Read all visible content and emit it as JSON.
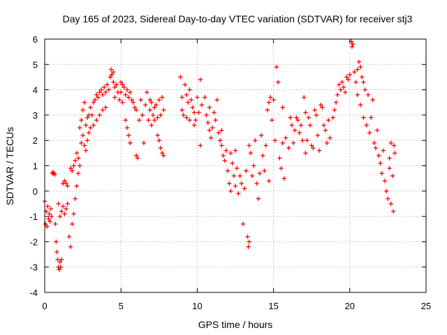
{
  "chart_data": {
    "type": "scatter",
    "title": "Day 165 of 2023, Sidereal Day-to-day VTEC variation (SDTVAR) for receiver stj3",
    "xlabel": "GPS time / hours",
    "ylabel": "SDTVAR / TECUs",
    "xlim": [
      0,
      25
    ],
    "ylim": [
      -4,
      6
    ],
    "xticks": [
      "0",
      "5",
      "10",
      "15",
      "20",
      "25"
    ],
    "yticks": [
      "-4",
      "-3",
      "-2",
      "-1",
      "0",
      "1",
      "2",
      "3",
      "4",
      "5",
      "6"
    ],
    "grid": true,
    "marker": "+",
    "color": "#ff0000",
    "series": [
      {
        "name": "SDTVAR",
        "points": [
          [
            0.0,
            -0.4
          ],
          [
            0.05,
            -1.3
          ],
          [
            0.1,
            -0.8
          ],
          [
            0.15,
            -1.4
          ],
          [
            0.2,
            -0.6
          ],
          [
            0.25,
            -1.1
          ],
          [
            0.3,
            -0.9
          ],
          [
            0.35,
            -1.2
          ],
          [
            0.4,
            -0.7
          ],
          [
            0.45,
            -1.0
          ],
          [
            0.5,
            0.7
          ],
          [
            0.55,
            0.75
          ],
          [
            0.6,
            0.7
          ],
          [
            0.65,
            0.65
          ],
          [
            0.7,
            -1.3
          ],
          [
            0.75,
            -2.0
          ],
          [
            0.8,
            -2.4
          ],
          [
            0.85,
            -2.7
          ],
          [
            0.9,
            -3.0
          ],
          [
            0.95,
            -3.1
          ],
          [
            1.0,
            -2.8
          ],
          [
            1.05,
            -3.0
          ],
          [
            1.1,
            -2.7
          ],
          [
            1.0,
            -1.0
          ],
          [
            1.1,
            -0.8
          ],
          [
            0.9,
            -0.5
          ],
          [
            1.2,
            -0.6
          ],
          [
            1.2,
            0.3
          ],
          [
            1.3,
            0.4
          ],
          [
            1.4,
            0.3
          ],
          [
            1.5,
            0.2
          ],
          [
            1.3,
            -0.9
          ],
          [
            1.4,
            -0.7
          ],
          [
            1.5,
            -0.5
          ],
          [
            1.6,
            -1.8
          ],
          [
            1.7,
            -2.2
          ],
          [
            1.7,
            0.9
          ],
          [
            1.8,
            0.8
          ],
          [
            1.8,
            -1.3
          ],
          [
            1.9,
            -0.9
          ],
          [
            1.9,
            1.0
          ],
          [
            2.0,
            1.2
          ],
          [
            2.0,
            -0.3
          ],
          [
            2.1,
            0.2
          ],
          [
            2.1,
            1.5
          ],
          [
            2.2,
            1.3
          ],
          [
            2.2,
            0.7
          ],
          [
            2.3,
            2.5
          ],
          [
            2.3,
            1.0
          ],
          [
            2.4,
            2.8
          ],
          [
            2.4,
            1.9
          ],
          [
            2.5,
            3.2
          ],
          [
            2.5,
            2.2
          ],
          [
            2.6,
            3.5
          ],
          [
            2.6,
            1.8
          ],
          [
            2.7,
            2.6
          ],
          [
            2.7,
            1.6
          ],
          [
            2.8,
            2.0
          ],
          [
            2.8,
            2.9
          ],
          [
            2.9,
            3.0
          ],
          [
            2.9,
            2.3
          ],
          [
            3.0,
            3.3
          ],
          [
            3.0,
            2.5
          ],
          [
            3.1,
            3.0
          ],
          [
            3.2,
            3.5
          ],
          [
            3.2,
            2.6
          ],
          [
            3.3,
            3.6
          ],
          [
            3.4,
            3.8
          ],
          [
            3.4,
            2.8
          ],
          [
            3.5,
            3.7
          ],
          [
            3.6,
            3.9
          ],
          [
            3.6,
            3.0
          ],
          [
            3.7,
            4.0
          ],
          [
            3.8,
            3.8
          ],
          [
            3.8,
            3.2
          ],
          [
            3.9,
            4.1
          ],
          [
            4.0,
            3.9
          ],
          [
            4.0,
            3.3
          ],
          [
            4.1,
            4.2
          ],
          [
            4.2,
            4.0
          ],
          [
            4.3,
            4.5
          ],
          [
            4.35,
            4.8
          ],
          [
            4.4,
            4.6
          ],
          [
            4.5,
            4.7
          ],
          [
            4.5,
            4.3
          ],
          [
            4.6,
            4.1
          ],
          [
            4.6,
            3.7
          ],
          [
            4.7,
            4.2
          ],
          [
            4.8,
            3.9
          ],
          [
            4.9,
            3.6
          ],
          [
            5.0,
            4.3
          ],
          [
            5.0,
            3.9
          ],
          [
            5.1,
            4.2
          ],
          [
            5.1,
            3.5
          ],
          [
            5.2,
            4.1
          ],
          [
            5.3,
            3.8
          ],
          [
            5.3,
            2.8
          ],
          [
            5.4,
            2.5
          ],
          [
            5.4,
            4.0
          ],
          [
            5.5,
            3.7
          ],
          [
            5.5,
            2.2
          ],
          [
            5.6,
            1.9
          ],
          [
            5.6,
            3.9
          ],
          [
            5.7,
            3.6
          ],
          [
            5.8,
            3.5
          ],
          [
            5.9,
            3.3
          ],
          [
            6.0,
            1.4
          ],
          [
            6.1,
            1.3
          ],
          [
            6.0,
            3.2
          ],
          [
            6.2,
            2.8
          ],
          [
            6.3,
            3.6
          ],
          [
            6.4,
            3.0
          ],
          [
            6.5,
            1.9
          ],
          [
            6.6,
            3.4
          ],
          [
            6.7,
            3.9
          ],
          [
            6.8,
            2.8
          ],
          [
            6.9,
            3.2
          ],
          [
            6.9,
            3.6
          ],
          [
            7.0,
            3.5
          ],
          [
            7.0,
            2.6
          ],
          [
            7.1,
            3.0
          ],
          [
            7.2,
            3.3
          ],
          [
            7.2,
            2.8
          ],
          [
            7.3,
            3.4
          ],
          [
            7.4,
            2.9
          ],
          [
            7.4,
            2.2
          ],
          [
            7.5,
            2.0
          ],
          [
            7.5,
            3.6
          ],
          [
            7.6,
            3.0
          ],
          [
            7.6,
            1.7
          ],
          [
            7.7,
            1.5
          ],
          [
            7.7,
            3.7
          ],
          [
            7.8,
            3.2
          ],
          [
            7.8,
            1.4
          ],
          [
            8.9,
            4.5
          ],
          [
            9.0,
            3.7
          ],
          [
            9.0,
            3.2
          ],
          [
            9.1,
            3.0
          ],
          [
            9.2,
            4.2
          ],
          [
            9.3,
            3.8
          ],
          [
            9.3,
            2.9
          ],
          [
            9.4,
            3.5
          ],
          [
            9.5,
            4.0
          ],
          [
            9.5,
            2.8
          ],
          [
            9.6,
            3.6
          ],
          [
            9.7,
            3.3
          ],
          [
            9.8,
            3.1
          ],
          [
            9.8,
            2.6
          ],
          [
            9.9,
            2.8
          ],
          [
            10.0,
            3.7
          ],
          [
            10.1,
            3.1
          ],
          [
            10.2,
            4.4
          ],
          [
            10.2,
            1.8
          ],
          [
            10.3,
            3.4
          ],
          [
            10.5,
            3.7
          ],
          [
            10.6,
            3.0
          ],
          [
            10.7,
            2.7
          ],
          [
            10.8,
            2.4
          ],
          [
            10.8,
            3.3
          ],
          [
            10.9,
            2.1
          ],
          [
            11.0,
            2.5
          ],
          [
            11.1,
            3.1
          ],
          [
            11.2,
            2.8
          ],
          [
            11.3,
            3.6
          ],
          [
            11.4,
            2.3
          ],
          [
            11.5,
            2.0
          ],
          [
            11.6,
            1.8
          ],
          [
            11.6,
            2.4
          ],
          [
            11.7,
            1.4
          ],
          [
            11.8,
            1.2
          ],
          [
            11.9,
            1.6
          ],
          [
            12.0,
            0.8
          ],
          [
            12.1,
            0.3
          ],
          [
            12.2,
            0.0
          ],
          [
            12.2,
            1.5
          ],
          [
            12.3,
            1.1
          ],
          [
            12.4,
            0.6
          ],
          [
            12.5,
            0.2
          ],
          [
            12.5,
            1.6
          ],
          [
            12.6,
            0.9
          ],
          [
            12.7,
            -0.1
          ],
          [
            12.8,
            0.6
          ],
          [
            12.9,
            0.3
          ],
          [
            13.0,
            -1.3
          ],
          [
            13.1,
            0.1
          ],
          [
            13.2,
            0.8
          ],
          [
            13.3,
            -1.8
          ],
          [
            13.35,
            -2.2
          ],
          [
            13.4,
            -2.0
          ],
          [
            13.4,
            1.8
          ],
          [
            13.5,
            1.5
          ],
          [
            13.6,
            0.6
          ],
          [
            13.7,
            1.0
          ],
          [
            13.8,
            2.0
          ],
          [
            13.9,
            0.3
          ],
          [
            14.0,
            -0.3
          ],
          [
            14.1,
            0.7
          ],
          [
            14.2,
            2.2
          ],
          [
            14.3,
            1.4
          ],
          [
            14.4,
            0.8
          ],
          [
            14.5,
            1.8
          ],
          [
            14.6,
            3.2
          ],
          [
            14.7,
            3.5
          ],
          [
            14.7,
            0.4
          ],
          [
            14.8,
            3.7
          ],
          [
            14.9,
            2.8
          ],
          [
            15.0,
            3.6
          ],
          [
            15.1,
            2.0
          ],
          [
            15.2,
            4.9
          ],
          [
            15.3,
            4.3
          ],
          [
            15.4,
            1.3
          ],
          [
            15.5,
            0.9
          ],
          [
            15.6,
            1.9
          ],
          [
            15.6,
            3.3
          ],
          [
            15.7,
            0.5
          ],
          [
            15.8,
            2.1
          ],
          [
            16.0,
            1.7
          ],
          [
            16.1,
            2.9
          ],
          [
            16.2,
            2.6
          ],
          [
            16.3,
            1.9
          ],
          [
            16.4,
            2.4
          ],
          [
            16.5,
            2.9
          ],
          [
            16.6,
            2.8
          ],
          [
            16.7,
            2.3
          ],
          [
            16.8,
            2.6
          ],
          [
            16.9,
            2.0
          ],
          [
            17.0,
            3.7
          ],
          [
            17.1,
            3.1
          ],
          [
            17.1,
            1.5
          ],
          [
            17.2,
            2.0
          ],
          [
            17.3,
            2.9
          ],
          [
            17.4,
            2.6
          ],
          [
            17.5,
            1.8
          ],
          [
            17.6,
            1.7
          ],
          [
            17.7,
            3.2
          ],
          [
            17.8,
            3.0
          ],
          [
            17.9,
            2.2
          ],
          [
            18.0,
            1.6
          ],
          [
            18.1,
            3.4
          ],
          [
            18.2,
            3.3
          ],
          [
            18.3,
            2.6
          ],
          [
            18.4,
            2.4
          ],
          [
            18.5,
            1.9
          ],
          [
            18.6,
            2.8
          ],
          [
            18.7,
            2.1
          ],
          [
            18.9,
            2.9
          ],
          [
            19.0,
            3.2
          ],
          [
            19.1,
            3.5
          ],
          [
            19.2,
            3.8
          ],
          [
            19.3,
            4.2
          ],
          [
            19.4,
            4.0
          ],
          [
            19.5,
            4.3
          ],
          [
            19.6,
            4.1
          ],
          [
            19.7,
            3.9
          ],
          [
            19.8,
            4.5
          ],
          [
            19.9,
            4.4
          ],
          [
            20.0,
            4.6
          ],
          [
            20.1,
            5.9
          ],
          [
            20.15,
            5.7
          ],
          [
            20.2,
            5.8
          ],
          [
            20.3,
            4.7
          ],
          [
            20.4,
            4.3
          ],
          [
            20.5,
            4.8
          ],
          [
            20.5,
            3.8
          ],
          [
            20.6,
            5.1
          ],
          [
            20.7,
            4.9
          ],
          [
            20.7,
            3.4
          ],
          [
            20.8,
            4.5
          ],
          [
            20.9,
            4.3
          ],
          [
            20.9,
            2.9
          ],
          [
            21.0,
            4.0
          ],
          [
            21.1,
            2.6
          ],
          [
            21.2,
            3.8
          ],
          [
            21.3,
            2.3
          ],
          [
            21.4,
            2.9
          ],
          [
            21.5,
            3.6
          ],
          [
            21.6,
            1.9
          ],
          [
            21.7,
            1.7
          ],
          [
            21.8,
            2.4
          ],
          [
            21.9,
            1.4
          ],
          [
            22.0,
            1.1
          ],
          [
            22.1,
            0.7
          ],
          [
            22.2,
            1.6
          ],
          [
            22.3,
            0.4
          ],
          [
            22.4,
            0.0
          ],
          [
            22.5,
            -0.3
          ],
          [
            22.6,
            0.9
          ],
          [
            22.7,
            -0.5
          ],
          [
            22.8,
            0.6
          ],
          [
            22.85,
            -0.8
          ],
          [
            22.9,
            1.8
          ],
          [
            22.95,
            1.5
          ],
          [
            22.6,
            1.3
          ],
          [
            22.7,
            1.9
          ]
        ]
      }
    ]
  }
}
